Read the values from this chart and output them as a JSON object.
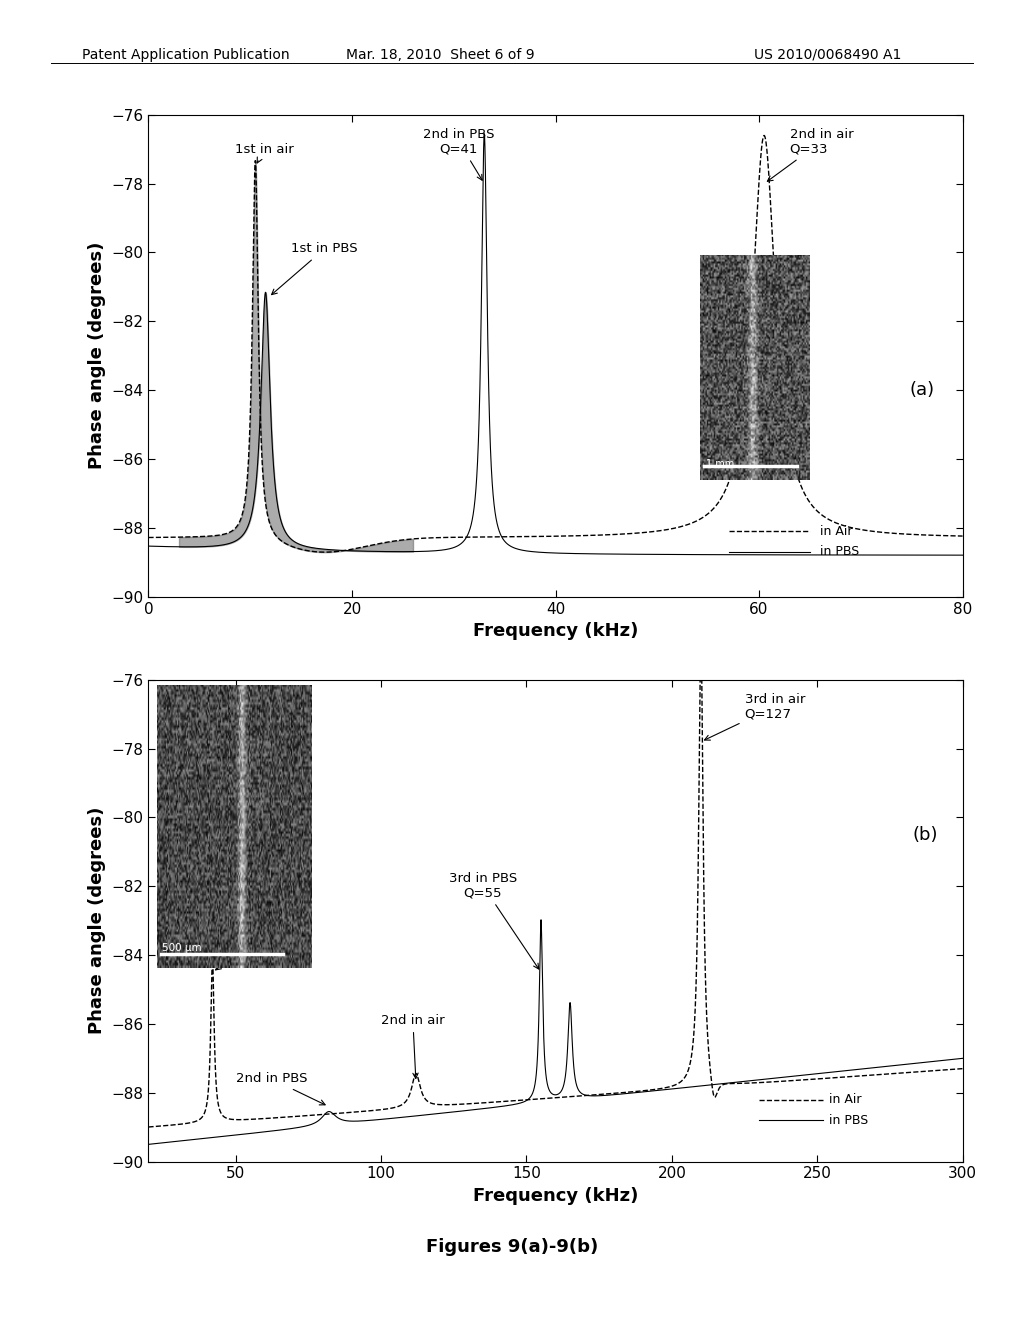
{
  "header_left": "Patent Application Publication",
  "header_mid": "Mar. 18, 2010  Sheet 6 of 9",
  "header_right": "US 2010/0068490 A1",
  "fig_caption": "Figures 9(a)-9(b)",
  "plot_a": {
    "xlim": [
      0,
      80
    ],
    "ylim": [
      -90,
      -76
    ],
    "xticks": [
      0,
      20,
      40,
      60,
      80
    ],
    "yticks": [
      -90,
      -88,
      -86,
      -84,
      -82,
      -80,
      -78,
      -76
    ],
    "xlabel": "Frequency (kHz)",
    "ylabel": "Phase angle (degrees)",
    "label_a": "(a)",
    "legend_air": "in Air",
    "legend_pbs": "in PBS"
  },
  "plot_b": {
    "xlim": [
      20,
      300
    ],
    "ylim": [
      -90,
      -76
    ],
    "xticks": [
      50,
      100,
      150,
      200,
      250,
      300
    ],
    "yticks": [
      -90,
      -88,
      -86,
      -84,
      -82,
      -80,
      -78,
      -76
    ],
    "xlabel": "Frequency (kHz)",
    "ylabel": "Phase angle (degrees)",
    "label_b": "(b)",
    "legend_air": "in Air",
    "legend_pbs": "in PBS"
  },
  "bg_color": "#ffffff",
  "header_fontsize": 10,
  "axis_label_fontsize": 13,
  "tick_fontsize": 11,
  "annotation_fontsize": 10,
  "caption_fontsize": 13
}
